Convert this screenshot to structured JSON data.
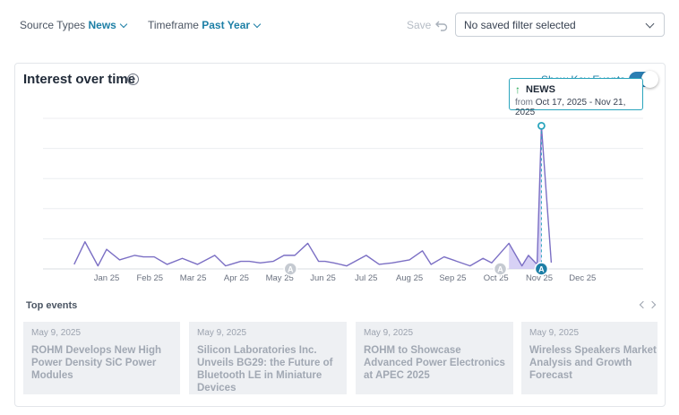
{
  "filters": {
    "source_label": "Source Types",
    "source_value": "News",
    "timeframe_label": "Timeframe",
    "timeframe_value": "Past Year",
    "save_label": "Save",
    "saved_filter_text": "No saved filter selected"
  },
  "card": {
    "title": "Interest over time",
    "key_events_label": "Show Key Events",
    "key_events_on": true
  },
  "tooltip": {
    "name": "NEWS",
    "from_label": "from",
    "range": "Oct 17, 2025 - Nov 21, 2025"
  },
  "chart_data": {
    "type": "line",
    "title": "Interest over time",
    "x_tick_labels": [
      "Jan 25",
      "Feb 25",
      "Mar 25",
      "Apr 25",
      "May 25",
      "Jun 25",
      "Jul 25",
      "Aug 25",
      "Sep 25",
      "Oct 25",
      "Nov 25",
      "Dec 25"
    ],
    "grid": true,
    "highlight_range": "Oct 17, 2025 - Nov 21, 2025",
    "series": [
      {
        "name": "News",
        "color": "#7b6fc4",
        "x": [
          0.25,
          0.5,
          0.8,
          1.0,
          1.3,
          1.65,
          1.85,
          2.1,
          2.4,
          2.75,
          3.1,
          3.5,
          3.75,
          4.1,
          4.3,
          4.55,
          4.85,
          5.1,
          5.35,
          5.65,
          5.9,
          6.05,
          6.25,
          6.55,
          7.0,
          7.3,
          7.6,
          8.0,
          8.3,
          8.5,
          8.8,
          9.1,
          9.4,
          9.7,
          9.9,
          10.3,
          10.6,
          10.75,
          10.95,
          11.05
        ],
        "values": [
          3,
          18,
          2,
          13,
          6,
          9,
          8,
          8,
          3,
          7,
          3,
          9,
          2,
          5,
          5,
          4,
          5,
          9,
          9,
          17,
          5,
          5,
          4,
          2,
          9,
          3,
          4,
          6,
          12,
          3,
          8,
          5,
          2,
          7,
          4,
          17,
          2,
          9,
          3,
          95
        ]
      }
    ],
    "key_events": [
      {
        "date": "May 25",
        "label": "A"
      },
      {
        "date": "Oct 25",
        "label": "A"
      },
      {
        "date": "Nov 25",
        "label": "A",
        "active": true
      }
    ]
  },
  "events": {
    "title": "Top events",
    "items": [
      {
        "date": "May 9, 2025",
        "headline": "ROHM Develops New High Power Density SiC Power Modules"
      },
      {
        "date": "May 9, 2025",
        "headline": "Silicon Laboratories Inc. Unveils BG29: the Future of Bluetooth LE in Miniature Devices"
      },
      {
        "date": "May 9, 2025",
        "headline": "ROHM to Showcase Advanced Power Electronics at APEC 2025"
      },
      {
        "date": "May 9, 2025",
        "headline": "Wireless Speakers Market Analysis and Growth Forecast"
      }
    ]
  }
}
